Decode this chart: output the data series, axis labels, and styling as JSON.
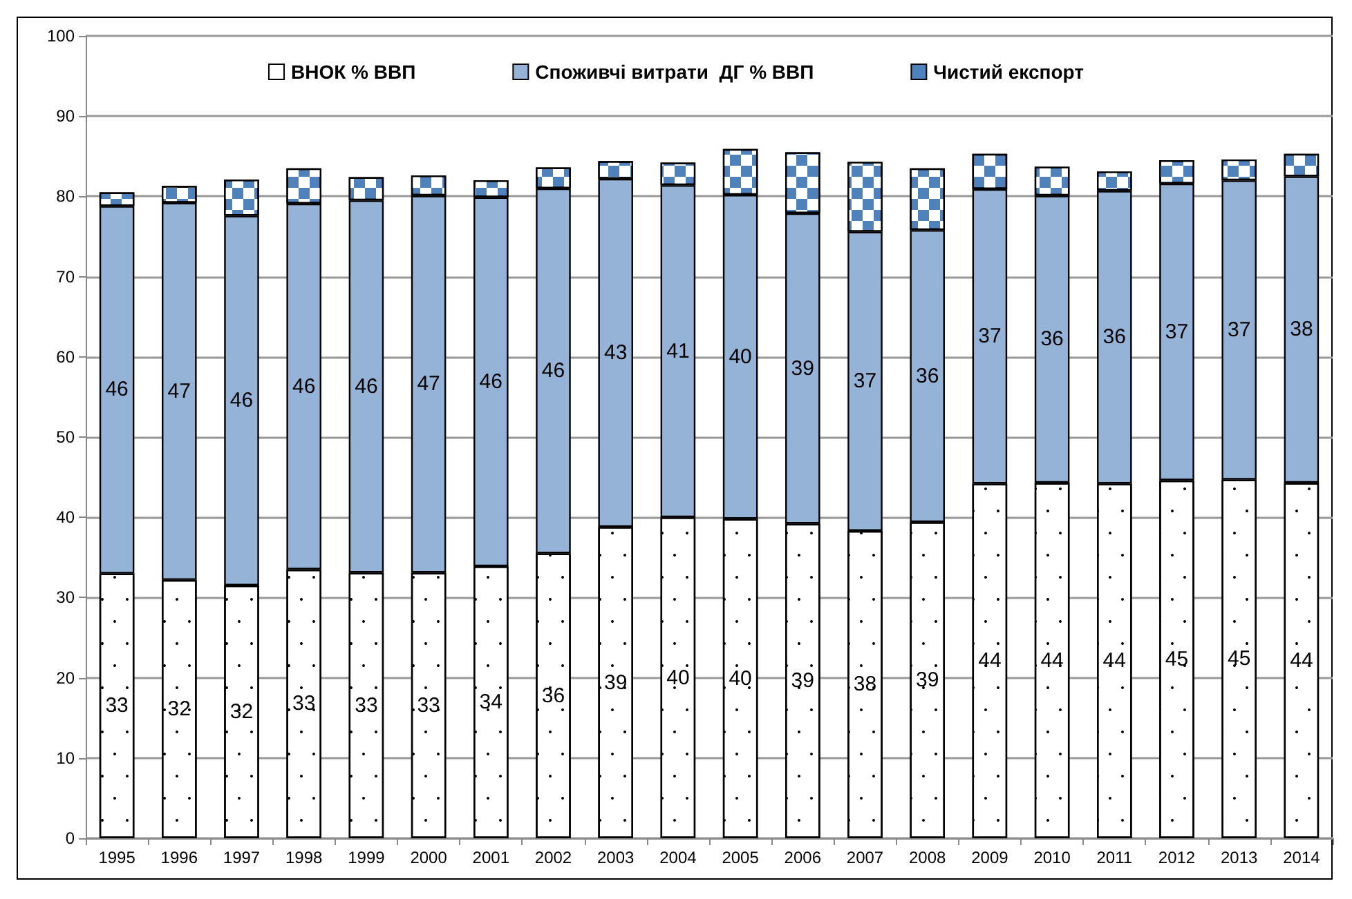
{
  "chart_data": {
    "type": "bar",
    "stacked": true,
    "categories": [
      "1995",
      "1996",
      "1997",
      "1998",
      "1999",
      "2000",
      "2001",
      "2002",
      "2003",
      "2004",
      "2005",
      "2006",
      "2007",
      "2008",
      "2009",
      "2010",
      "2011",
      "2012",
      "2013",
      "2014"
    ],
    "series": [
      {
        "name": "ВНОК % ВВП",
        "color": "#ffffff",
        "values": [
          33.0,
          32.2,
          31.5,
          33.5,
          33.1,
          33.1,
          33.9,
          35.5,
          38.8,
          40.0,
          39.8,
          39.2,
          38.3,
          39.4,
          44.2,
          44.3,
          44.2,
          44.6,
          44.7,
          44.3
        ],
        "value_labels": [
          "33",
          "32",
          "32",
          "33",
          "33",
          "33",
          "34",
          "36",
          "39",
          "40",
          "40",
          "39",
          "38",
          "39",
          "44",
          "44",
          "44",
          "45",
          "45",
          "44"
        ]
      },
      {
        "name": "Споживчі витрати  ДГ % ВВП",
        "color": "#95b3d7",
        "values": [
          45.8,
          47.0,
          46.1,
          45.6,
          46.4,
          47.0,
          46.0,
          45.5,
          43.4,
          41.4,
          40.4,
          38.7,
          37.3,
          36.4,
          36.7,
          35.8,
          36.5,
          37.0,
          37.3,
          38.2
        ],
        "value_labels": [
          "46",
          "47",
          "46",
          "46",
          "46",
          "47",
          "46",
          "46",
          "43",
          "41",
          "40",
          "39",
          "37",
          "36",
          "37",
          "36",
          "36",
          "37",
          "37",
          "38"
        ]
      },
      {
        "name": "Чистий експорт",
        "color": "#4f81bd",
        "values": [
          1.7,
          2.1,
          4.5,
          4.4,
          2.9,
          2.5,
          2.1,
          2.6,
          2.2,
          2.8,
          5.7,
          7.6,
          8.7,
          7.7,
          4.4,
          3.6,
          2.4,
          2.9,
          2.6,
          2.8
        ]
      }
    ],
    "ylim": [
      0,
      100
    ],
    "yticks": [
      0,
      10,
      20,
      30,
      40,
      50,
      60,
      70,
      80,
      90,
      100
    ],
    "grid": "y",
    "legend": "top"
  }
}
